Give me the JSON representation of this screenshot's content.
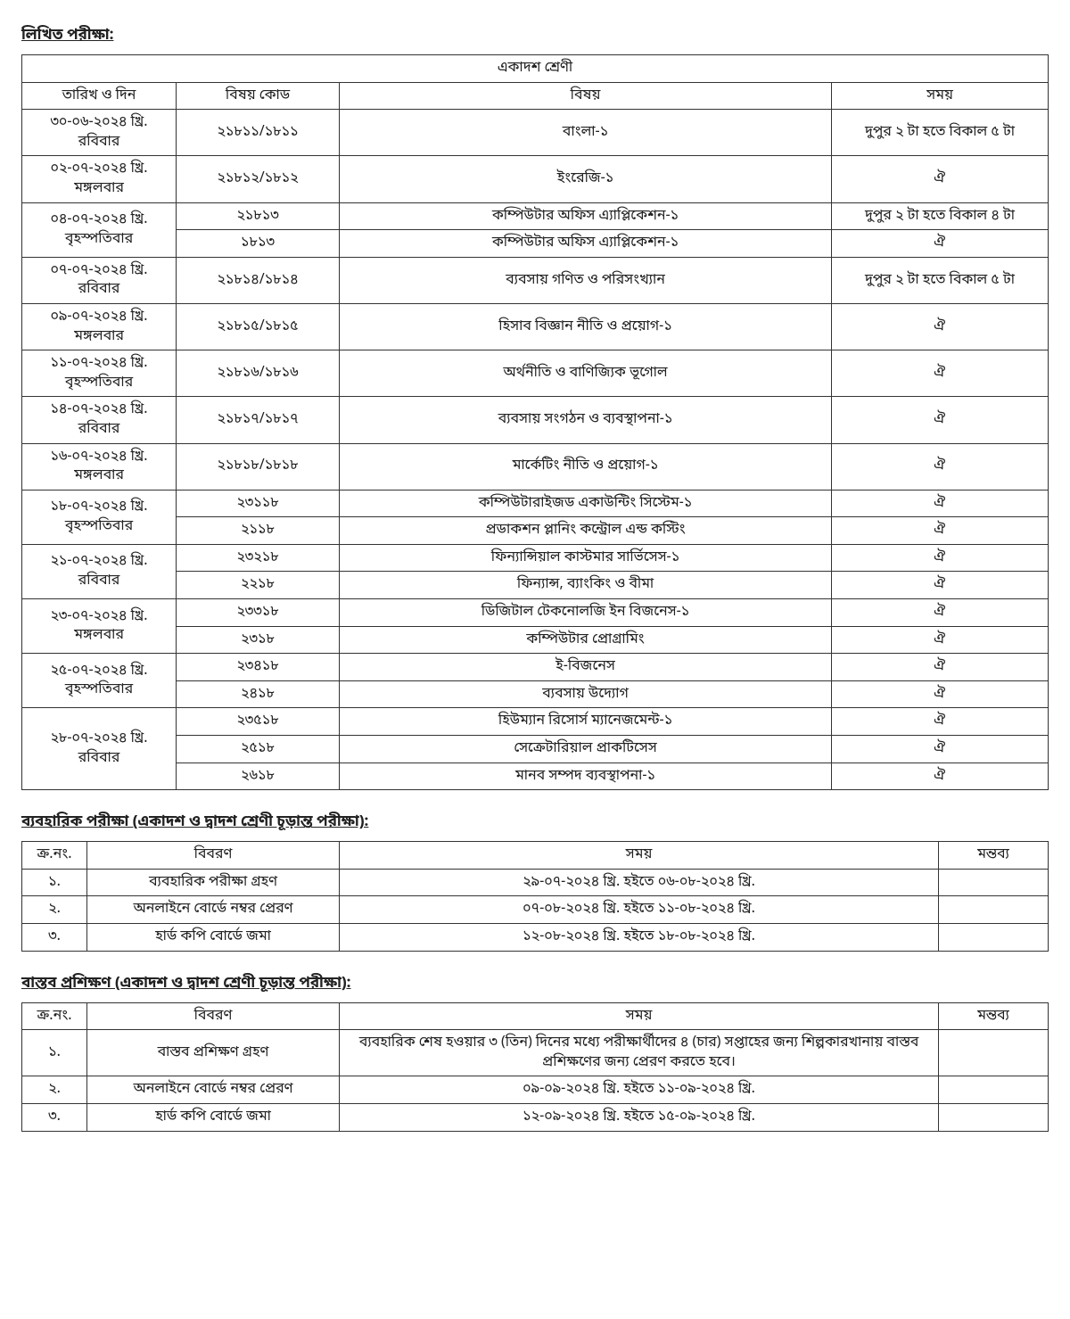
{
  "heading_written": "লিখিত পরীক্ষা:",
  "exam_table": {
    "group_header": "একাদশ শ্রেণী",
    "columns": {
      "date": "তারিখ ও দিন",
      "code": "বিষয় কোড",
      "subject": "বিষয়",
      "time": "সময়"
    },
    "rows": [
      {
        "date_line1": "৩০-০৬-২০২৪ খ্রি.",
        "date_line2": "রবিবার",
        "sub": [
          {
            "code": "২১৮১১/১৮১১",
            "subject": "বাংলা-১",
            "time": "দুপুর ২ টা হতে বিকাল ৫ টা"
          }
        ]
      },
      {
        "date_line1": "০২-০৭-২০২৪ খ্রি.",
        "date_line2": "মঙ্গলবার",
        "sub": [
          {
            "code": "২১৮১২/১৮১২",
            "subject": "ইংরেজি-১",
            "time": "ঐ"
          }
        ]
      },
      {
        "date_line1": "০৪-০৭-২০২৪ খ্রি.",
        "date_line2": "বৃহস্পতিবার",
        "sub": [
          {
            "code": "২১৮১৩",
            "subject": "কম্পিউটার অফিস এ্যাপ্লিকেশন-১",
            "time": "দুপুর ২ টা হতে বিকাল ৪ টা"
          },
          {
            "code": "১৮১৩",
            "subject": "কম্পিউটার অফিস এ্যাপ্লিকেশন-১",
            "time": "ঐ"
          }
        ]
      },
      {
        "date_line1": "০৭-০৭-২০২৪ খ্রি.",
        "date_line2": "রবিবার",
        "sub": [
          {
            "code": "২১৮১৪/১৮১৪",
            "subject": "ব্যবসায় গণিত ও পরিসংখ্যান",
            "time": "দুপুর ২ টা হতে বিকাল ৫ টা"
          }
        ]
      },
      {
        "date_line1": "০৯-০৭-২০২৪ খ্রি.",
        "date_line2": "মঙ্গলবার",
        "sub": [
          {
            "code": "২১৮১৫/১৮১৫",
            "subject": "হিসাব বিজ্ঞান নীতি ও প্রয়োগ-১",
            "time": "ঐ"
          }
        ]
      },
      {
        "date_line1": "১১-০৭-২০২৪ খ্রি.",
        "date_line2": "বৃহস্পতিবার",
        "sub": [
          {
            "code": "২১৮১৬/১৮১৬",
            "subject": "অর্থনীতি ও বাণিজ্যিক ভূগোল",
            "time": "ঐ"
          }
        ]
      },
      {
        "date_line1": "১৪-০৭-২০২৪ খ্রি.",
        "date_line2": "রবিবার",
        "sub": [
          {
            "code": "২১৮১৭/১৮১৭",
            "subject": "ব্যবসায় সংগঠন ও ব্যবস্থাপনা-১",
            "time": "ঐ"
          }
        ]
      },
      {
        "date_line1": "১৬-০৭-২০২৪ খ্রি.",
        "date_line2": "মঙ্গলবার",
        "sub": [
          {
            "code": "২১৮১৮/১৮১৮",
            "subject": "মার্কেটিং নীতি ও প্রয়োগ-১",
            "time": "ঐ"
          }
        ]
      },
      {
        "date_line1": "১৮-০৭-২০২৪ খ্রি.",
        "date_line2": "বৃহস্পতিবার",
        "sub": [
          {
            "code": "২৩১১৮",
            "subject": "কম্পিউটারাইজড একাউন্টিং সিস্টেম-১",
            "time": "ঐ"
          },
          {
            "code": "২১১৮",
            "subject": "প্রডাকশন প্লানিং কন্ট্রোল এন্ড কস্টিং",
            "time": "ঐ"
          }
        ]
      },
      {
        "date_line1": "২১-০৭-২০২৪ খ্রি.",
        "date_line2": "রবিবার",
        "sub": [
          {
            "code": "২৩২১৮",
            "subject": "ফিন্যান্সিয়াল কাস্টমার সার্ভিসেস-১",
            "time": "ঐ"
          },
          {
            "code": "২২১৮",
            "subject": "ফিন্যান্স, ব্যাংকিং ও বীমা",
            "time": "ঐ"
          }
        ]
      },
      {
        "date_line1": "২৩-০৭-২০২৪ খ্রি.",
        "date_line2": "মঙ্গলবার",
        "sub": [
          {
            "code": "২৩৩১৮",
            "subject": "ডিজিটাল টেকনোলজি ইন বিজনেস-১",
            "time": "ঐ"
          },
          {
            "code": "২৩১৮",
            "subject": "কম্পিউটার প্রোগ্রামিং",
            "time": "ঐ"
          }
        ]
      },
      {
        "date_line1": "২৫-০৭-২০২৪ খ্রি.",
        "date_line2": "বৃহস্পতিবার",
        "sub": [
          {
            "code": "২৩৪১৮",
            "subject": "ই-বিজনেস",
            "time": "ঐ"
          },
          {
            "code": "২৪১৮",
            "subject": "ব্যবসায় উদ্যোগ",
            "time": "ঐ"
          }
        ]
      },
      {
        "date_line1": "২৮-০৭-২০২৪ খ্রি.",
        "date_line2": "রবিবার",
        "sub": [
          {
            "code": "২৩৫১৮",
            "subject": "হিউম্যান রিসোর্স ম্যানেজমেন্ট-১",
            "time": "ঐ"
          },
          {
            "code": "২৫১৮",
            "subject": "সেক্রেটারিয়াল প্রাকটিসেস",
            "time": "ঐ"
          },
          {
            "code": "২৬১৮",
            "subject": "মানব সম্পদ ব্যবস্থাপনা-১",
            "time": "ঐ"
          }
        ]
      }
    ]
  },
  "heading_practical": "ব্যবহারিক পরীক্ষা (একাদশ ও দ্বাদশ শ্রেণী চূড়ান্ত পরীক্ষা):",
  "practical_table": {
    "columns": {
      "sl": "ক্র.নং.",
      "desc": "বিবরণ",
      "time": "সময়",
      "remark": "মন্তব্য"
    },
    "rows": [
      {
        "sl": "১.",
        "desc": "ব্যবহারিক পরীক্ষা গ্রহণ",
        "time": "২৯-০৭-২০২৪ খ্রি. হইতে ০৬-০৮-২০২৪ খ্রি.",
        "remark": ""
      },
      {
        "sl": "২.",
        "desc": "অনলাইনে বোর্ডে নম্বর প্রেরণ",
        "time": "০৭-০৮-২০২৪ খ্রি. হইতে ১১-০৮-২০২৪ খ্রি.",
        "remark": ""
      },
      {
        "sl": "৩.",
        "desc": "হার্ড কপি বোর্ডে জমা",
        "time": "১২-০৮-২০২৪ খ্রি. হইতে ১৮-০৮-২০২৪ খ্রি.",
        "remark": ""
      }
    ]
  },
  "heading_training": "বাস্তব প্রশিক্ষণ (একাদশ ও দ্বাদশ শ্রেণী চূড়ান্ত পরীক্ষা):",
  "training_table": {
    "columns": {
      "sl": "ক্র.নং.",
      "desc": "বিবরণ",
      "time": "সময়",
      "remark": "মন্তব্য"
    },
    "rows": [
      {
        "sl": "১.",
        "desc": "বাস্তব প্রশিক্ষণ গ্রহণ",
        "time": "ব্যবহারিক শেষ হওয়ার ৩ (তিন) দিনের মধ্যে পরীক্ষার্থীদের ৪ (চার) সপ্তাহের জন্য শিল্পকারখানায় বাস্তব প্রশিক্ষণের জন্য প্রেরণ করতে হবে।",
        "remark": ""
      },
      {
        "sl": "২.",
        "desc": "অনলাইনে বোর্ডে নম্বর প্রেরণ",
        "time": "০৯-০৯-২০২৪ খ্রি. হইতে ১১-০৯-২০২৪ খ্রি.",
        "remark": ""
      },
      {
        "sl": "৩.",
        "desc": "হার্ড কপি বোর্ডে জমা",
        "time": "১২-০৯-২০২৪ খ্রি. হইতে ১৫-০৯-২০২৪ খ্রি.",
        "remark": ""
      }
    ]
  }
}
